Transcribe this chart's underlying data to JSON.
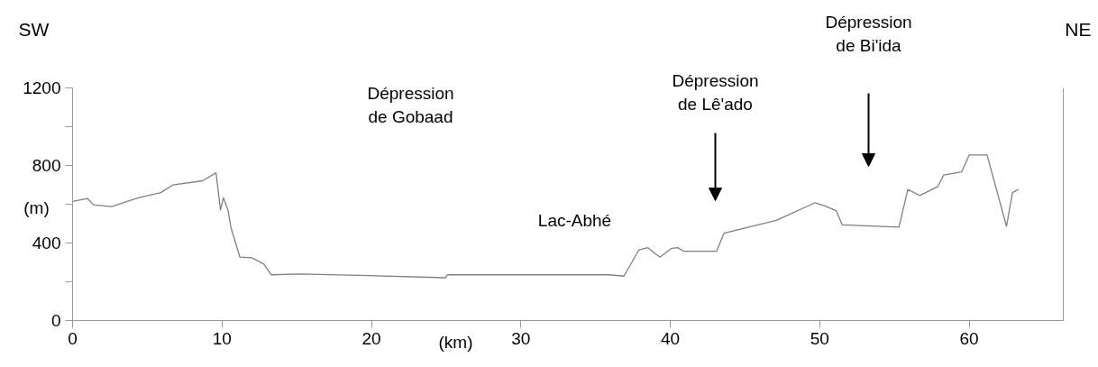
{
  "chart_data": {
    "type": "line",
    "xlabel": "(km)",
    "ylabel": "(m)",
    "x": [
      0,
      1,
      1.4,
      2.6,
      4.4,
      5.9,
      6.7,
      8.7,
      9.6,
      9.9,
      10.1,
      10.4,
      10.6,
      11.2,
      12.0,
      12.8,
      13.3,
      15.2,
      19.2,
      24.95,
      25.1,
      35.9,
      36.9,
      37.9,
      38.5,
      39.3,
      40.1,
      40.5,
      40.9,
      43.1,
      43.6,
      47.1,
      49.7,
      50.3,
      51.1,
      51.5,
      55.3,
      55.9,
      56.7,
      57.9,
      58.3,
      59.5,
      60.0,
      61.2,
      62.5,
      62.9,
      63.3
    ],
    "series": [
      {
        "color": "#808080",
        "values": [
          615,
          630,
          597,
          588,
          633,
          660,
          699,
          721,
          762,
          570,
          633,
          570,
          479,
          327,
          324,
          291,
          236,
          240,
          233,
          221,
          236,
          236,
          229,
          365,
          376,
          327,
          373,
          376,
          358,
          358,
          451,
          517,
          608,
          592,
          567,
          494,
          482,
          676,
          645,
          691,
          751,
          767,
          854,
          854,
          486,
          660,
          676
        ]
      }
    ],
    "xlim": [
      0,
      66.3
    ],
    "ylim": [
      0,
      1200
    ],
    "xticks": [
      0,
      10,
      20,
      30,
      40,
      50,
      60
    ],
    "yticks": [
      0,
      {
        "value": 200,
        "label": null
      },
      400,
      {
        "value": 600,
        "label": null
      },
      800,
      {
        "value": 1000,
        "label": null
      },
      1200
    ],
    "grid": false,
    "marker": "none",
    "line_style": "solid",
    "annotations": [
      "SW",
      "NE",
      "Dépression\nde Gobaad",
      "Lac-Abhé",
      "Dépression\nde Lê'ado",
      "Dépression\nde Bi'ida"
    ]
  }
}
